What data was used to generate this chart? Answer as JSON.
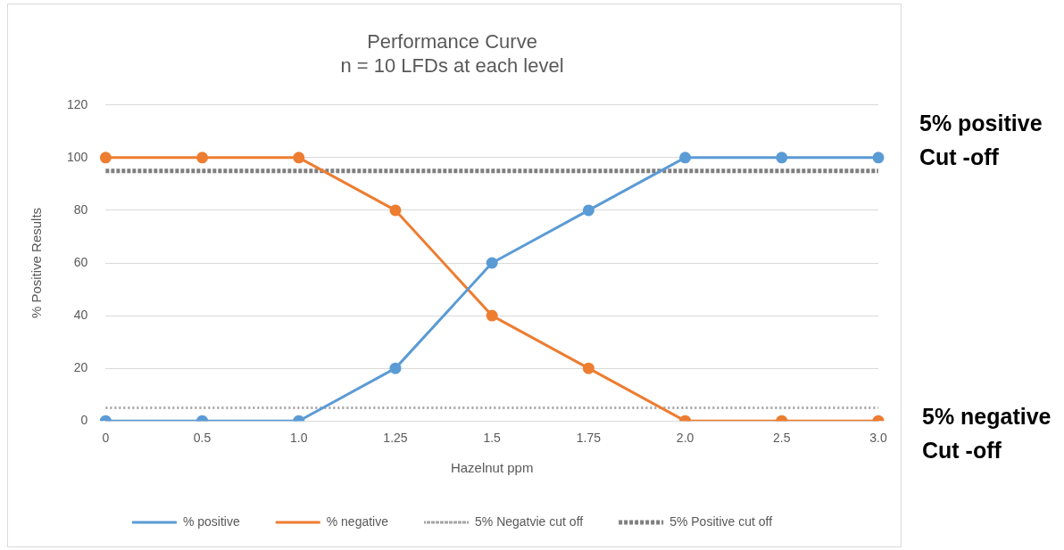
{
  "chart_data": {
    "type": "line",
    "title": "Performance Curve\nn = 10 LFDs at each level",
    "xlabel": "Hazelnut ppm",
    "ylabel": "% Positive Results",
    "categories": [
      "0",
      "0.5",
      "1.0",
      "1.25",
      "1.5",
      "1.75",
      "2.0",
      "2.5",
      "3.0"
    ],
    "series": [
      {
        "name": "% positive",
        "color": "#5b9bd5",
        "values": [
          0,
          0,
          0,
          20,
          60,
          80,
          100,
          100,
          100
        ]
      },
      {
        "name": "% negative",
        "color": "#ed7d31",
        "values": [
          100,
          100,
          100,
          80,
          40,
          20,
          0,
          0,
          0
        ]
      },
      {
        "name": "5% Negatvie cut off",
        "color": "#a5a5a5",
        "marker": "none",
        "line_style": "dotted",
        "values": [
          5,
          5,
          5,
          5,
          5,
          5,
          5,
          5,
          5
        ]
      },
      {
        "name": "5% Positive cut off",
        "color": "#7f7f7f",
        "marker": "none",
        "line_style": "dashed",
        "values": [
          95,
          95,
          95,
          95,
          95,
          95,
          95,
          95,
          95
        ]
      }
    ],
    "ylim": [
      0,
      120
    ],
    "yticks": [
      0,
      20,
      40,
      60,
      80,
      100,
      120
    ],
    "grid": "y",
    "legend": "bottom",
    "marker": "circle",
    "line_style": "solid",
    "annotations": [
      "5% positive\nCut -off",
      "5% negative\nCut -off"
    ]
  }
}
